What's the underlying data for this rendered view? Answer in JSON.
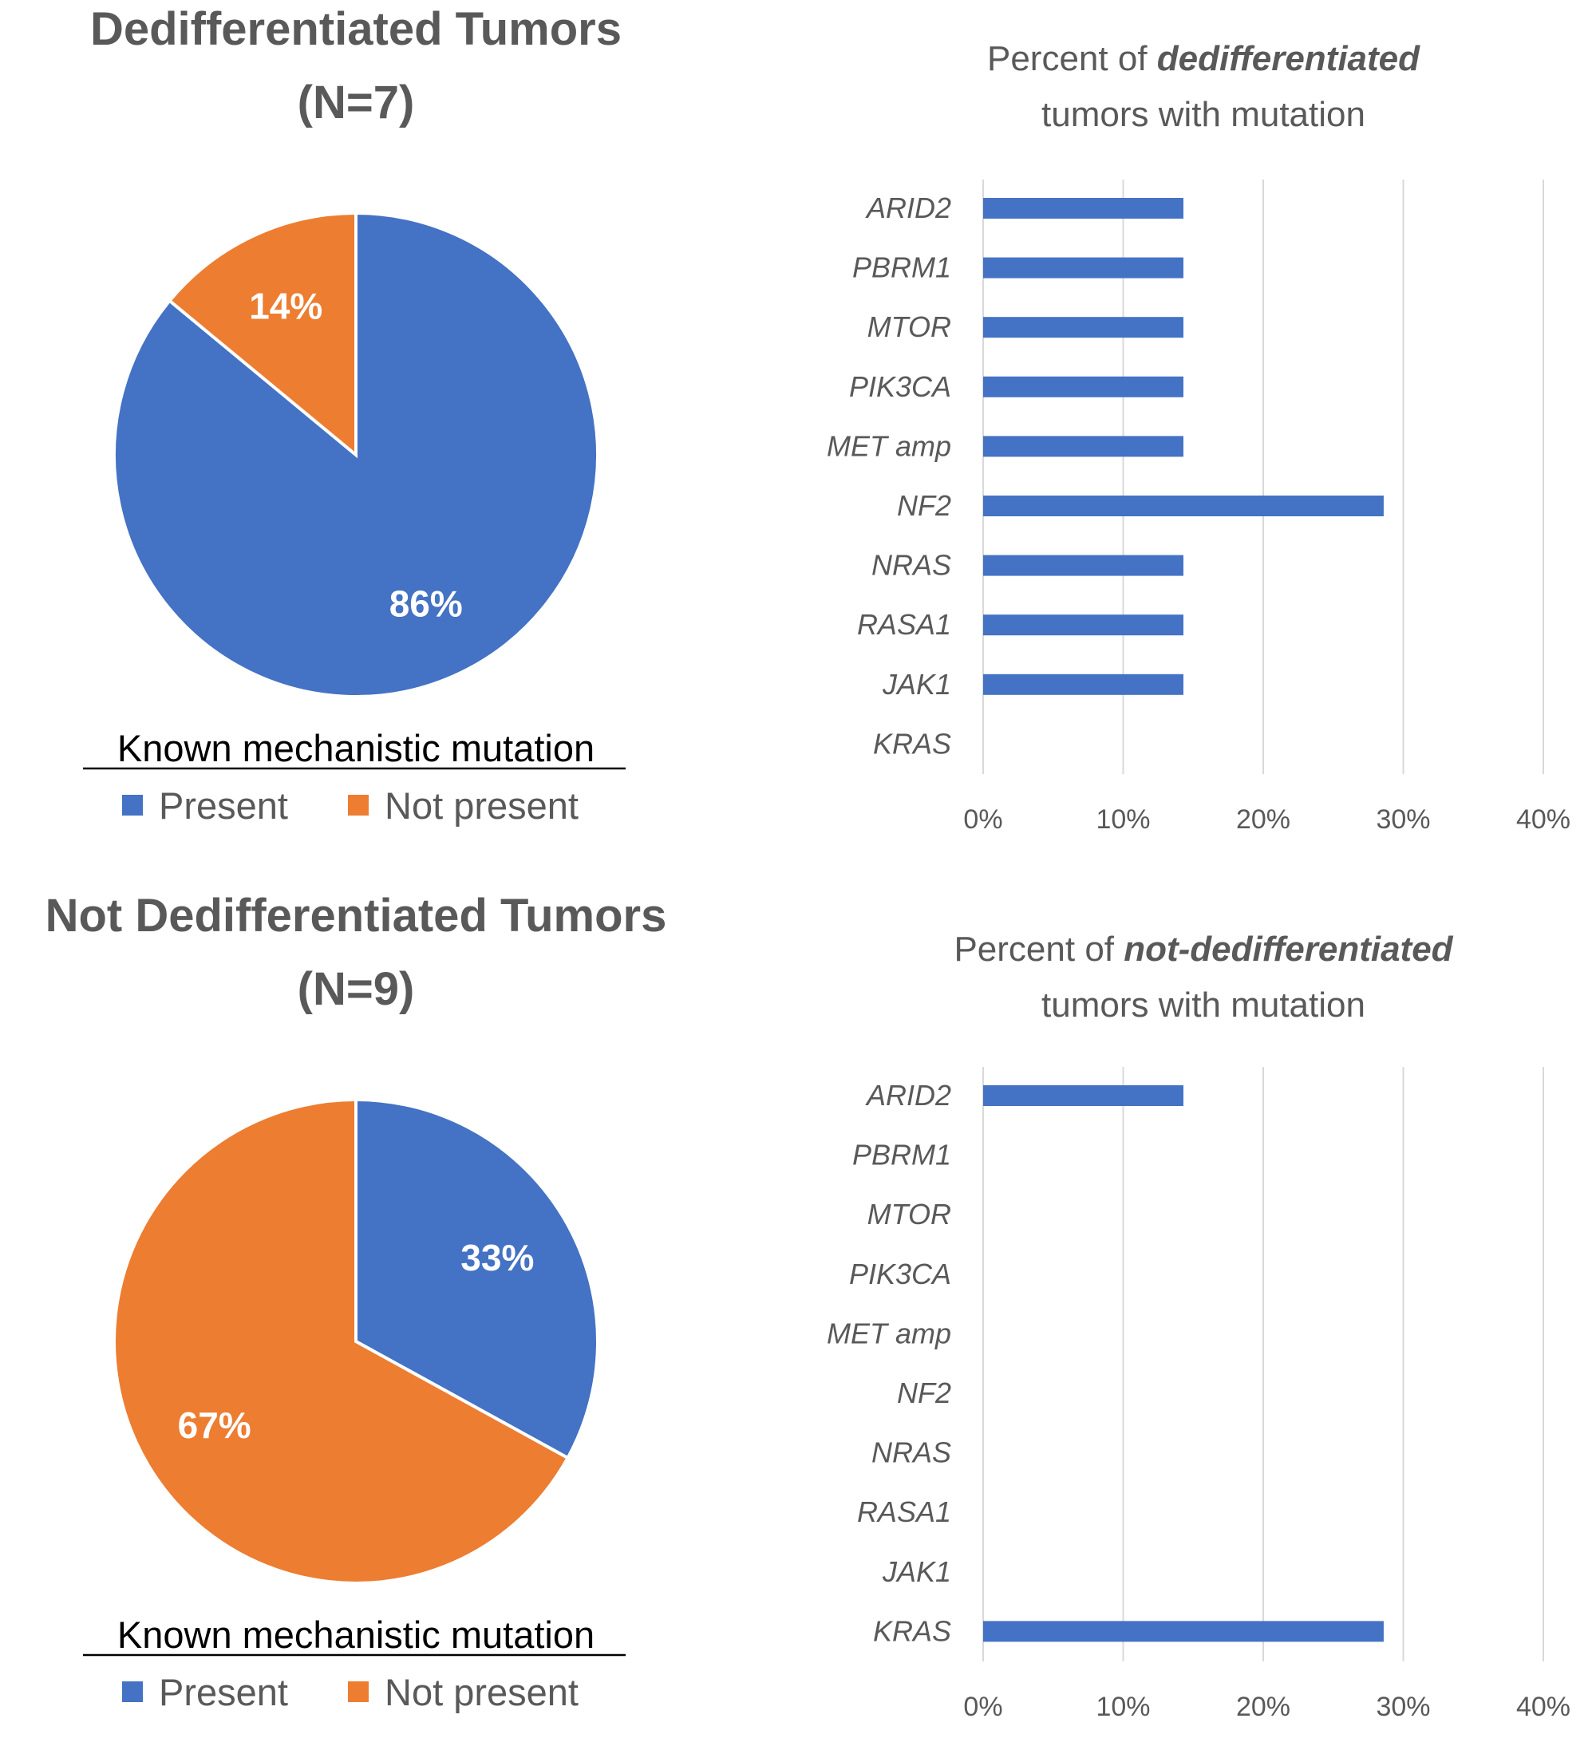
{
  "colors": {
    "present": "#4472C4",
    "not_present": "#ED7D31",
    "bar": "#4472C4",
    "grid": "#D9D9D9",
    "text": "#595959"
  },
  "chart_data": [
    {
      "type": "pie",
      "title_line1": "Dedifferentiated Tumors",
      "title_line2": "(N=7)",
      "legend_title": "Known mechanistic mutation",
      "slices": [
        {
          "name": "Present",
          "value": 86,
          "label": "86%"
        },
        {
          "name": "Not present",
          "value": 14,
          "label": "14%"
        }
      ],
      "legend_placement": "bottom"
    },
    {
      "type": "bar",
      "orientation": "horizontal",
      "title_pre": "Percent of ",
      "title_em": "dedifferentiated",
      "title_line2": "tumors with mutation",
      "categories": [
        "ARID2",
        "PBRM1",
        "MTOR",
        "PIK3CA",
        "MET amp",
        "NF2",
        "NRAS",
        "RASA1",
        "JAK1",
        "KRAS"
      ],
      "values": [
        14.3,
        14.3,
        14.3,
        14.3,
        14.3,
        28.6,
        14.3,
        14.3,
        14.3,
        0
      ],
      "xlim": [
        0,
        40
      ],
      "xticks": [
        "0%",
        "10%",
        "20%",
        "30%",
        "40%"
      ],
      "grid": true
    },
    {
      "type": "pie",
      "title_line1": "Not Dedifferentiated Tumors",
      "title_line2": "(N=9)",
      "legend_title": "Known mechanistic mutation",
      "slices": [
        {
          "name": "Present",
          "value": 33,
          "label": "33%"
        },
        {
          "name": "Not present",
          "value": 67,
          "label": "67%"
        }
      ],
      "legend_placement": "bottom"
    },
    {
      "type": "bar",
      "orientation": "horizontal",
      "title_pre": "Percent of ",
      "title_em": "not-dedifferentiated",
      "title_line2": "tumors with mutation",
      "categories": [
        "ARID2",
        "PBRM1",
        "MTOR",
        "PIK3CA",
        "MET amp",
        "NF2",
        "NRAS",
        "RASA1",
        "JAK1",
        "KRAS"
      ],
      "values": [
        14.3,
        0,
        0,
        0,
        0,
        0,
        0,
        0,
        0,
        28.6
      ],
      "xlim": [
        0,
        40
      ],
      "xticks": [
        "0%",
        "10%",
        "20%",
        "30%",
        "40%"
      ],
      "grid": true
    }
  ]
}
